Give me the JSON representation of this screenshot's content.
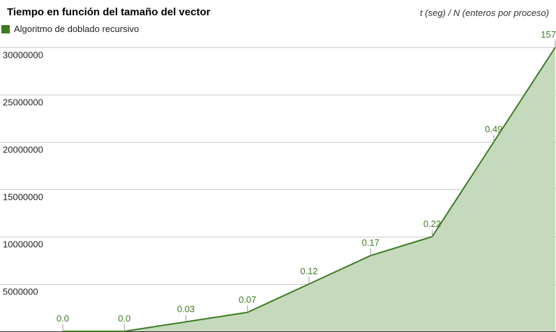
{
  "chart_data": {
    "type": "area",
    "title": "Tiempo en función del tamaño del vector",
    "subtitle": "t (seg) / N (enteros por proceso)",
    "xlabel": "",
    "ylabel": "",
    "legend_position": "top-left",
    "grid": true,
    "ylim": [
      0,
      30000000
    ],
    "y_ticks": [
      "30000000",
      "25000000",
      "20000000",
      "15000000",
      "10000000",
      "5000000"
    ],
    "y_tick_values": [
      30000000,
      25000000,
      20000000,
      15000000,
      10000000,
      5000000
    ],
    "series": [
      {
        "name": "Algoritmo de doblado recursivo",
        "color": "#3d7a22",
        "fill": "#c5d9bc",
        "x": [
          1,
          2,
          3,
          4,
          5,
          6,
          7,
          8,
          9
        ],
        "values": [
          0,
          0,
          1000000,
          2000000,
          5000000,
          8000000,
          10000000,
          20000000,
          30000000
        ],
        "labels": [
          "0.0",
          "0.0",
          "0.03",
          "0.07",
          "0.12",
          "0.17",
          "0.22",
          "0.49",
          "157"
        ]
      }
    ]
  }
}
